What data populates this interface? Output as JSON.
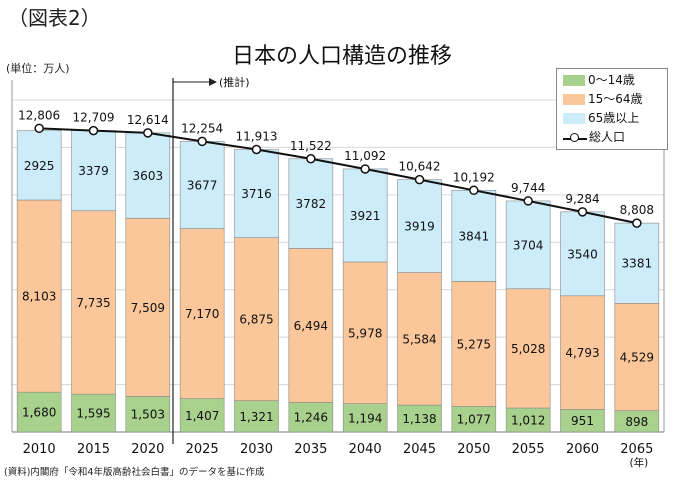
{
  "figure_label": "（図表2）",
  "unit_label": "(単位：万人)",
  "projection_label": "(推計)",
  "source": "(資料)内閣府「令和4年版高齢社会白書」のデータを基に作成",
  "year_unit": "(年)",
  "chart_data": {
    "type": "bar",
    "title": "日本の人口構造の推移",
    "xlabel": "",
    "ylabel": "",
    "categories": [
      "2010",
      "2015",
      "2020",
      "2025",
      "2030",
      "2035",
      "2040",
      "2045",
      "2050",
      "2055",
      "2060",
      "2065"
    ],
    "series": [
      {
        "name": "0～14歳",
        "color": "#a9d18e",
        "values": [
          1680,
          1595,
          1503,
          1407,
          1321,
          1246,
          1194,
          1138,
          1077,
          1012,
          951,
          898
        ],
        "labels": [
          "1,680",
          "1,595",
          "1,503",
          "1,407",
          "1,321",
          "1,246",
          "1,194",
          "1,138",
          "1,077",
          "1,012",
          "951",
          "898"
        ]
      },
      {
        "name": "15～64歳",
        "color": "#fbc79a",
        "values": [
          8103,
          7735,
          7509,
          7170,
          6875,
          6494,
          5978,
          5584,
          5275,
          5028,
          4793,
          4529
        ],
        "labels": [
          "8,103",
          "7,735",
          "7,509",
          "7,170",
          "6,875",
          "6,494",
          "5,978",
          "5,584",
          "5,275",
          "5,028",
          "4,793",
          "4,529"
        ]
      },
      {
        "name": "65歳以上",
        "color": "#ccecfa",
        "values": [
          2925,
          3379,
          3603,
          3677,
          3716,
          3782,
          3921,
          3919,
          3841,
          3704,
          3540,
          3381
        ],
        "labels": [
          "2925",
          "3379",
          "3603",
          "3677",
          "3716",
          "3782",
          "3921",
          "3919",
          "3841",
          "3704",
          "3540",
          "3381"
        ]
      }
    ],
    "line": {
      "name": "総人口",
      "values": [
        12806,
        12709,
        12614,
        12254,
        11913,
        11522,
        11092,
        10642,
        10192,
        9744,
        9284,
        8808
      ],
      "labels": [
        "12,806",
        "12,709",
        "12,614",
        "12,254",
        "11,913",
        "11,522",
        "11,092",
        "10,642",
        "10,192",
        "9,744",
        "9,284",
        "8,808"
      ]
    },
    "ylim": [
      0,
      14000
    ],
    "grid": true,
    "legend": "top-right",
    "projection_start": "2025"
  }
}
